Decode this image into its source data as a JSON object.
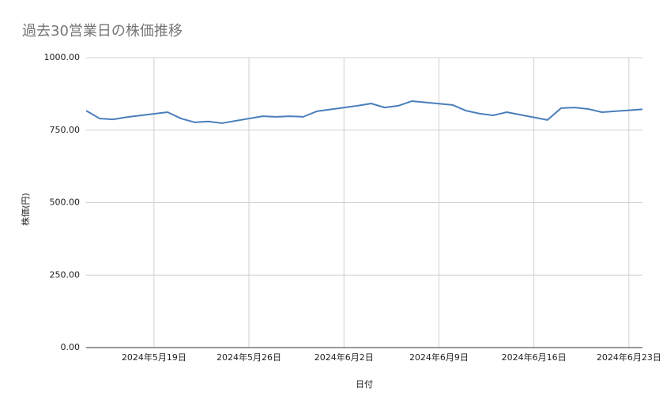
{
  "chart_data": {
    "type": "line",
    "title": "過去30営業日の株価推移",
    "x_label": "日付",
    "y_label": "株価(円)",
    "x": [
      "2024-05-14",
      "2024-05-15",
      "2024-05-16",
      "2024-05-17",
      "2024-05-20",
      "2024-05-21",
      "2024-05-22",
      "2024-05-23",
      "2024-05-24",
      "2024-05-27",
      "2024-05-28",
      "2024-05-29",
      "2024-05-30",
      "2024-05-31",
      "2024-06-03",
      "2024-06-04",
      "2024-06-05",
      "2024-06-06",
      "2024-06-07",
      "2024-06-10",
      "2024-06-11",
      "2024-06-12",
      "2024-06-13",
      "2024-06-14",
      "2024-06-17",
      "2024-06-18",
      "2024-06-19",
      "2024-06-20",
      "2024-06-21",
      "2024-06-24"
    ],
    "series": [
      {
        "name": "株価",
        "color": "#4a7ebb",
        "values": [
          817,
          790,
          787,
          795,
          812,
          790,
          777,
          780,
          774,
          798,
          796,
          798,
          796,
          815,
          834,
          842,
          828,
          834,
          850,
          837,
          817,
          807,
          801,
          812,
          785,
          826,
          828,
          823,
          812,
          822
        ]
      }
    ],
    "xlim": [
      "2024-05-14",
      "2024-06-24"
    ],
    "xticks": [
      {
        "value": "2024-05-19",
        "label": "2024年5月19日"
      },
      {
        "value": "2024-05-26",
        "label": "2024年5月26日"
      },
      {
        "value": "2024-06-02",
        "label": "2024年6月2日"
      },
      {
        "value": "2024-06-09",
        "label": "2024年6月9日"
      },
      {
        "value": "2024-06-16",
        "label": "2024年6月16日"
      },
      {
        "value": "2024-06-23",
        "label": "2024年6月23日"
      }
    ],
    "ylim": [
      0,
      1000
    ],
    "yticks": [
      {
        "value": 0,
        "label": "0.00"
      },
      {
        "value": 250,
        "label": "250.00"
      },
      {
        "value": 500,
        "label": "500.00"
      },
      {
        "value": 750,
        "label": "750.00"
      },
      {
        "value": 1000,
        "label": "1000.00"
      }
    ],
    "grid": true
  }
}
